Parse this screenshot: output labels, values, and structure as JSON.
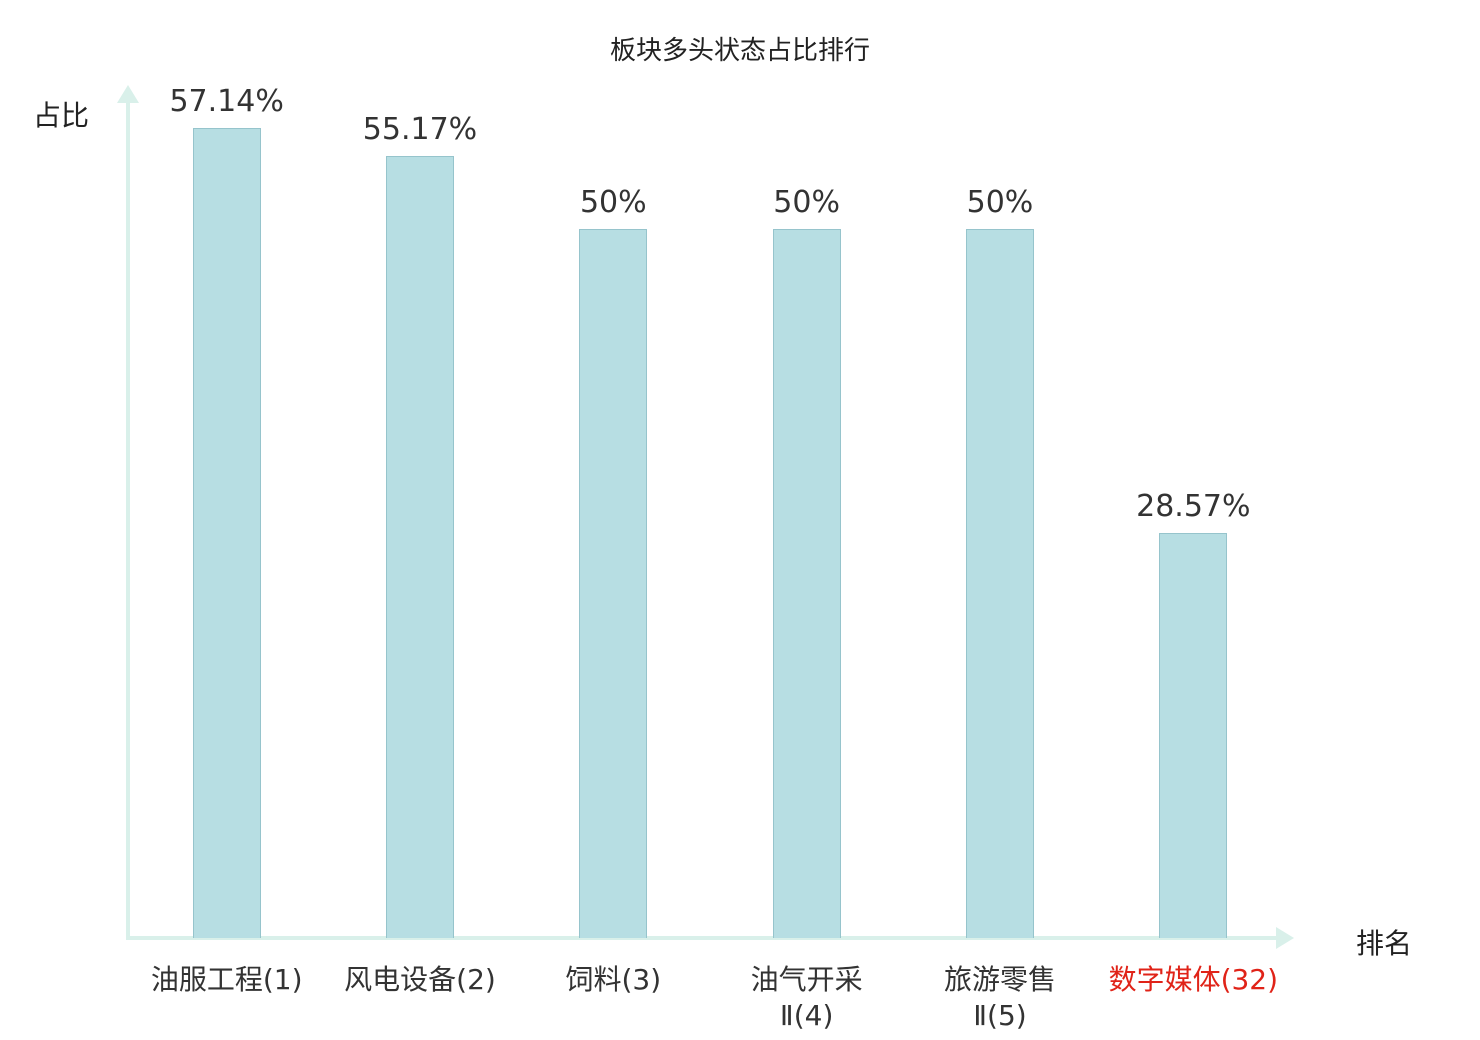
{
  "chart_data": {
    "type": "bar",
    "title": "板块多头状态占比排行",
    "xlabel": "排名",
    "ylabel": "占比",
    "categories": [
      "油服工程(1)",
      "风电设备(2)",
      "饲料(3)",
      "油气开采\nⅡ(4)",
      "旅游零售\nⅡ(5)",
      "数字媒体(32)"
    ],
    "values": [
      57.14,
      55.17,
      50,
      50,
      50,
      28.57
    ],
    "value_labels": [
      "57.14%",
      "55.17%",
      "50%",
      "50%",
      "50%",
      "28.57%"
    ],
    "highlight_index": 5,
    "ylim": [
      0,
      60
    ],
    "grid": false,
    "legend_position": "none",
    "colors": {
      "bar": "#b7dee3",
      "axis": "#d9f0ea",
      "text": "#333333",
      "highlight": "#e02318"
    }
  }
}
